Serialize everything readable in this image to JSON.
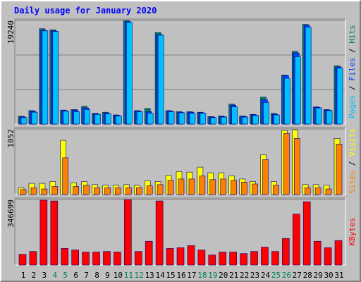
{
  "title": "Daily usage for January 2020",
  "separator": " / ",
  "chart_data": [
    {
      "type": "bar",
      "ylim": [
        0,
        19240
      ],
      "yticks": [
        19240
      ],
      "series": [
        {
          "name": "Hits",
          "color": "#00805c",
          "values": [
            1450,
            2500,
            17700,
            17500,
            2600,
            2700,
            3300,
            2000,
            2200,
            1700,
            19240,
            2500,
            2900,
            17000,
            2500,
            2300,
            2300,
            2200,
            1400,
            1500,
            3700,
            1500,
            1800,
            5000,
            2000,
            9100,
            13500,
            18500,
            3200,
            2700,
            10800
          ]
        },
        {
          "name": "Files",
          "color": "#0040ff",
          "values": [
            1350,
            2350,
            17400,
            17300,
            2500,
            2600,
            3000,
            1900,
            2000,
            1600,
            19000,
            2400,
            2300,
            16600,
            2400,
            2200,
            2200,
            2100,
            1300,
            1400,
            3500,
            1400,
            1700,
            4500,
            1800,
            9000,
            13200,
            18300,
            3100,
            2600,
            10600
          ]
        },
        {
          "name": "Pages",
          "color": "#00c0ff",
          "values": [
            1200,
            2200,
            17300,
            17200,
            2400,
            2300,
            2700,
            1800,
            1900,
            1500,
            18900,
            2300,
            2000,
            16500,
            2300,
            2100,
            2000,
            2000,
            1200,
            1300,
            3200,
            1300,
            1600,
            4000,
            1700,
            8500,
            12500,
            18000,
            3000,
            2500,
            10400
          ]
        }
      ]
    },
    {
      "type": "bar",
      "ylim": [
        0,
        1052
      ],
      "yticks": [
        1052
      ],
      "series": [
        {
          "name": "Visits",
          "color": "#ffff00",
          "values": [
            110,
            180,
            180,
            210,
            870,
            190,
            210,
            160,
            150,
            150,
            160,
            150,
            220,
            210,
            310,
            370,
            360,
            440,
            350,
            350,
            300,
            250,
            210,
            640,
            210,
            1030,
            1040,
            160,
            160,
            150,
            900
          ]
        },
        {
          "name": "Sites",
          "color": "#ff8000",
          "values": [
            80,
            110,
            90,
            130,
            590,
            130,
            150,
            110,
            110,
            110,
            110,
            110,
            140,
            160,
            230,
            250,
            250,
            300,
            240,
            250,
            230,
            200,
            170,
            560,
            150,
            980,
            900,
            110,
            110,
            90,
            810
          ]
        }
      ]
    },
    {
      "type": "bar",
      "ylim": [
        0,
        346699
      ],
      "yticks": [
        346699
      ],
      "categories": [
        "1",
        "2",
        "3",
        "4",
        "5",
        "6",
        "7",
        "8",
        "9",
        "10",
        "11",
        "12",
        "13",
        "14",
        "15",
        "16",
        "17",
        "18",
        "19",
        "20",
        "21",
        "22",
        "23",
        "24",
        "25",
        "26",
        "27",
        "28",
        "29",
        "30",
        "31"
      ],
      "label_colors": [
        "#000000",
        "#000000",
        "#000000",
        "#00805c",
        "#00805c",
        "#000000",
        "#000000",
        "#000000",
        "#000000",
        "#000000",
        "#00805c",
        "#00805c",
        "#000000",
        "#000000",
        "#000000",
        "#000000",
        "#000000",
        "#00805c",
        "#00805c",
        "#000000",
        "#000000",
        "#000000",
        "#000000",
        "#000000",
        "#00805c",
        "#00805c",
        "#000000",
        "#000000",
        "#000000",
        "#000000",
        "#000000"
      ],
      "series": [
        {
          "name": "KBytes",
          "color": "#ff0000",
          "values": [
            57000,
            72000,
            343000,
            339000,
            88000,
            80000,
            69000,
            69000,
            72000,
            69000,
            346699,
            72000,
            126000,
            339000,
            88000,
            92000,
            103000,
            80000,
            53000,
            69000,
            69000,
            61000,
            72000,
            95000,
            72000,
            141000,
            270000,
            335000,
            126000,
            92000,
            130000
          ]
        }
      ]
    }
  ]
}
